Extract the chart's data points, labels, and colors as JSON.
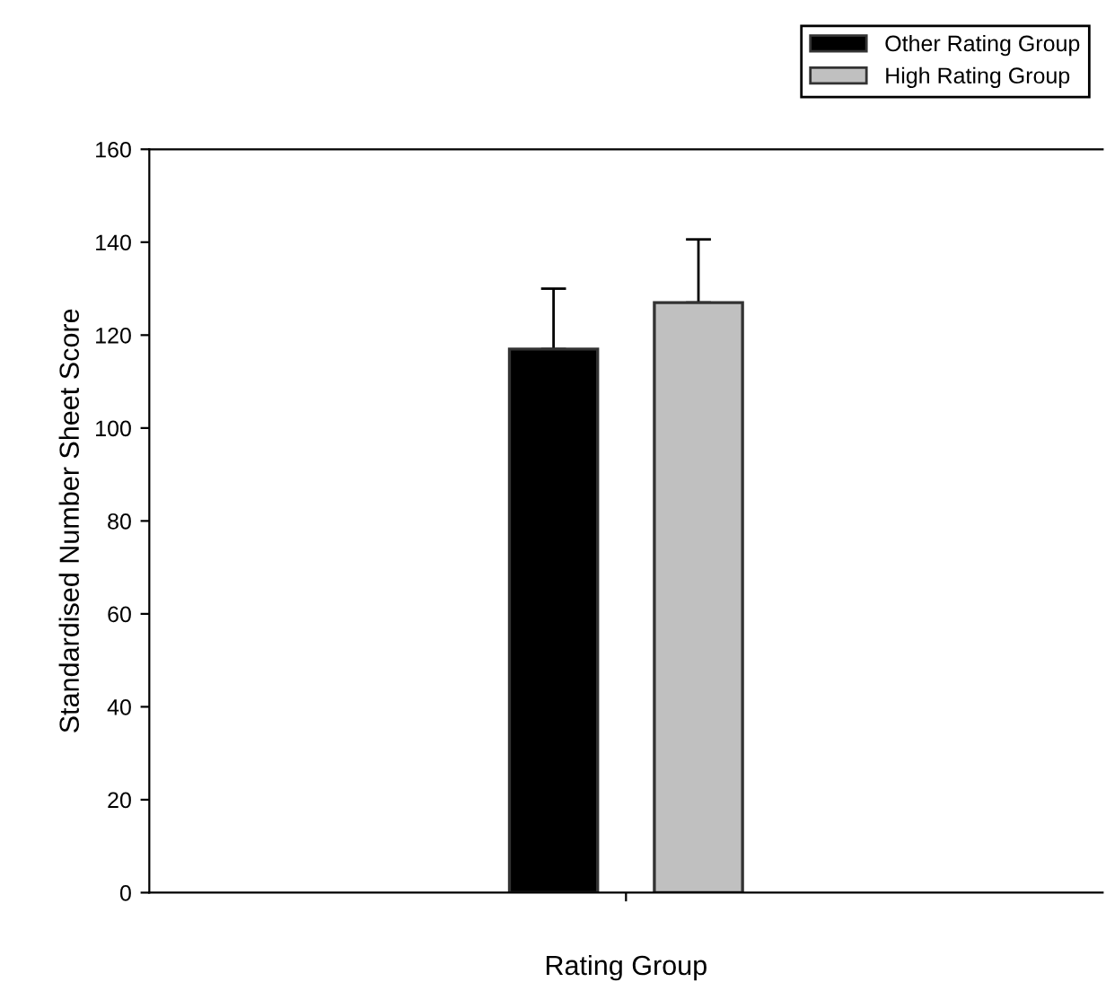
{
  "chart_data": {
    "type": "bar",
    "xlabel": "Rating Group",
    "ylabel": "Standardised Number Sheet Score",
    "categories": [
      null
    ],
    "series": [
      {
        "name": "Other Rating Group",
        "color": "#000000",
        "values": [
          117
        ],
        "errors": [
          [
            117,
            130
          ]
        ]
      },
      {
        "name": "High Rating Group",
        "color": "#c0c0c0",
        "values": [
          127
        ],
        "errors": [
          [
            127,
            140.6
          ]
        ]
      }
    ],
    "ylim": [
      0,
      160
    ],
    "yticks": [
      0,
      20,
      40,
      60,
      80,
      100,
      120,
      140,
      160
    ],
    "grid": false,
    "legend": "top right"
  }
}
